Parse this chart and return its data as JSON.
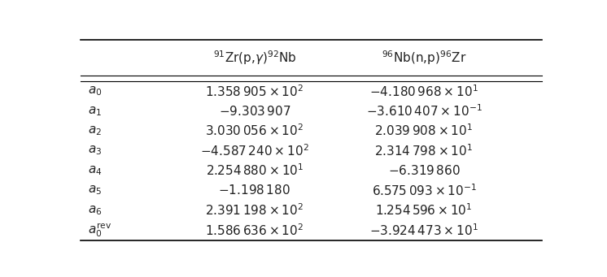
{
  "col_headers": [
    "$^{91}$Zr(p,$\\gamma$)$^{92}$Nb",
    "$^{96}$Nb(n,p)$^{96}$Zr"
  ],
  "row_labels": [
    "$a_0$",
    "$a_1$",
    "$a_2$",
    "$a_3$",
    "$a_4$",
    "$a_5$",
    "$a_6$",
    "$a_0^{\\mathrm{rev}}$"
  ],
  "col1_values": [
    "$1.358\\,905 \\times 10^{2}$",
    "$-9.303\\,907$",
    "$3.030\\,056 \\times 10^{2}$",
    "$-4.587\\,240 \\times 10^{2}$",
    "$2.254\\,880 \\times 10^{1}$",
    "$-1.198\\,180$",
    "$2.391\\,198 \\times 10^{2}$",
    "$1.586\\,636 \\times 10^{2}$"
  ],
  "col2_values": [
    "$-4.180\\,968 \\times 10^{1}$",
    "$-3.610\\,407 \\times 10^{-1}$",
    "$2.039\\,908 \\times 10^{1}$",
    "$2.314\\,798 \\times 10^{1}$",
    "$-6.319\\,860$",
    "$6.575\\,093 \\times 10^{-1}$",
    "$1.254\\,596 \\times 10^{1}$",
    "$-3.924\\,473 \\times 10^{1}$"
  ],
  "text_color": "#222222",
  "header_fontsize": 11,
  "row_label_fontsize": 11,
  "cell_fontsize": 11,
  "fig_width": 7.46,
  "fig_height": 3.41
}
